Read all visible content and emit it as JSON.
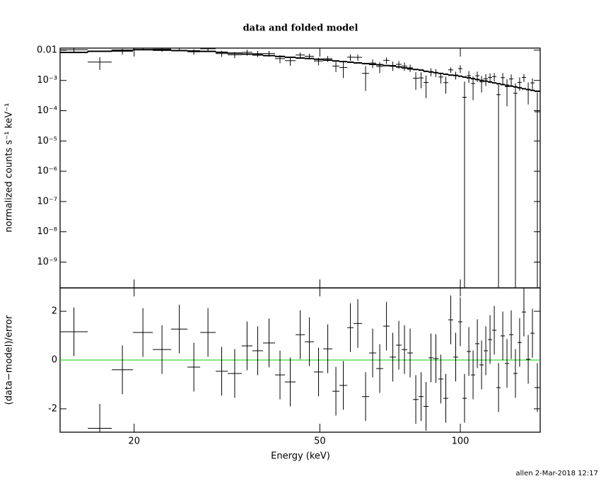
{
  "footer": "allen   2-Mar-2018 12:17",
  "chart_data": [
    {
      "type": "spectrum",
      "title": "data and folded model",
      "ylabel": "normalized counts s⁻¹ keV⁻¹",
      "ylog": true,
      "xlog": true,
      "xlim": [
        13.88,
        148.3
      ],
      "xticks": [
        20,
        50,
        100
      ],
      "ylim": [
        1.4e-10,
        0.0117
      ],
      "yticks": [
        0.01,
        {
          "value": 0.001,
          "label": "10⁻³"
        },
        {
          "value": 0.0001,
          "label": "10⁻⁴"
        },
        {
          "value": 1e-05,
          "label": "10⁻⁵"
        },
        {
          "value": 1e-06,
          "label": "10⁻⁶"
        },
        {
          "value": 1e-07,
          "label": "10⁻⁷"
        },
        {
          "value": 1e-08,
          "label": "10⁻⁸"
        },
        {
          "value": 1e-09,
          "label": "10⁻⁹"
        }
      ],
      "bin_edges": [
        13.88,
        15.91,
        17.91,
        19.89,
        21.93,
        24.01,
        26.02,
        27.71,
        29.91,
        31.73,
        34.01,
        35.84,
        37.77,
        40.09,
        42.09,
        44.36,
        46.42,
        48.57,
        50.83,
        53.19,
        55.07,
        57.23,
        59.04,
        61.58,
        63.76,
        66.03,
        68.38,
        70.56,
        72.8,
        74.86,
        76.98,
        79.16,
        81.4,
        83.41,
        85.47,
        87.57,
        89.74,
        91.96,
        94.24,
        96.56,
        98.96,
        101.0,
        103.2,
        105.4,
        107.6,
        109.9,
        112.2,
        114.6,
        117.0,
        119.5,
        122.0,
        124.6,
        127.2,
        129.9,
        132.6,
        135.4,
        138.3,
        141.3,
        144.2,
        148.3
      ],
      "values": [
        0.0103,
        0.00405,
        0.00911,
        0.01275,
        0.01086,
        0.01216,
        0.00885,
        0.01116,
        0.00772,
        0.00703,
        0.00847,
        0.00767,
        0.00776,
        0.00525,
        0.0045,
        0.00693,
        0.00629,
        0.00439,
        0.00524,
        0.00299,
        0.00267,
        0.00586,
        0.0058,
        0.00171,
        0.00375,
        0.0029,
        0.00461,
        0.00313,
        0.0034,
        0.00299,
        0.00261,
        0.00118,
        0.00121,
        0.00086,
        0.00195,
        0.00183,
        0.0013,
        0.000846,
        0.00224,
        0.00151,
        0.00246,
        0.000277,
        0.00143,
        0.000792,
        0.00143,
        0.0009,
        0.00113,
        0.00126,
        0.00134,
        0.000339,
        0.00124,
        0.000622,
        0.00112,
        0.000375,
        0.000857,
        0.00126,
        0.000511,
        0.000832,
        9.2e-05
      ],
      "errors": [
        0.00168,
        0.00184,
        0.00198,
        0.00208,
        0.002,
        0.00194,
        0.00188,
        0.00182,
        0.0017,
        0.00158,
        0.00185,
        0.00175,
        0.00165,
        0.00155,
        0.00145,
        0.001375,
        0.001325,
        0.00125,
        0.001175,
        0.0011,
        0.00147,
        0.0014,
        0.00133,
        0.00126,
        0.00119,
        0.001155,
        0.001085,
        0.00105,
        0.00098,
        0.00091,
        0.00072,
        0.00069,
        0.00066,
        0.0006,
        0.00057,
        0.00054,
        0.00051,
        0.00048,
        0.00045,
        0.00044,
        0.00069,
        0.000645,
        0.00061,
        0.00057,
        0.000535,
        0.0005,
        0.000475,
        0.000445,
        0.000415,
        0.00039,
        0.000511,
        0.000483,
        0.000455,
        0.000427,
        0.000399,
        0.000371,
        0.00035,
        0.000329,
        0.000308
      ],
      "model": {
        "color": "#000000",
        "values": [
          0.0084,
          0.0092,
          0.0099,
          0.0104,
          0.01,
          0.0097,
          0.0094,
          0.0091,
          0.0085,
          0.0079,
          0.0074,
          0.007,
          0.0066,
          0.0062,
          0.0058,
          0.0055,
          0.0053,
          0.005,
          0.0047,
          0.0044,
          0.0042,
          0.004,
          0.0038,
          0.0036,
          0.0034,
          0.0033,
          0.0031,
          0.003,
          0.0028,
          0.0026,
          0.0024,
          0.0023,
          0.0022,
          0.002,
          0.0019,
          0.0018,
          0.0017,
          0.0016,
          0.0015,
          0.00146,
          0.00138,
          0.00129,
          0.00122,
          0.00114,
          0.00107,
          0.001,
          0.00095,
          0.00089,
          0.00083,
          0.00078,
          0.00073,
          0.00069,
          0.00065,
          0.00061,
          0.00057,
          0.00053,
          0.0005,
          0.00047,
          0.00044
        ]
      },
      "color": "#000000"
    },
    {
      "type": "residuals",
      "xlabel": "Energy (keV)",
      "ylabel": "(data−model)/error",
      "xlog": true,
      "xlim": [
        13.88,
        148.3
      ],
      "xticks": [
        20,
        50,
        100
      ],
      "ylim": [
        -2.96,
        2.96
      ],
      "yticks": [
        -2,
        0,
        2
      ],
      "zero_line_color": "#00cc00",
      "color": "#000000",
      "bin_edges": [
        13.88,
        15.91,
        17.91,
        19.89,
        21.93,
        24.01,
        26.02,
        27.71,
        29.91,
        31.73,
        34.01,
        35.84,
        37.77,
        40.09,
        42.09,
        44.36,
        46.42,
        48.57,
        50.83,
        53.19,
        55.07,
        57.23,
        59.04,
        61.58,
        63.76,
        66.03,
        68.38,
        70.56,
        72.8,
        74.86,
        76.98,
        79.16,
        81.4,
        83.41,
        85.47,
        87.57,
        89.74,
        91.96,
        94.24,
        96.56,
        98.96,
        101.0,
        103.2,
        105.4,
        107.6,
        109.9,
        112.2,
        114.6,
        117.0,
        119.5,
        122.0,
        124.6,
        127.2,
        129.9,
        132.6,
        135.4,
        138.3,
        141.3,
        144.2,
        148.3
      ],
      "values": [
        1.16,
        -2.8,
        -0.4,
        1.13,
        0.43,
        1.27,
        -0.29,
        1.13,
        -0.46,
        -0.55,
        0.58,
        0.38,
        0.7,
        -0.61,
        -0.9,
        1.04,
        0.75,
        -0.49,
        0.46,
        -1.28,
        -1.04,
        1.33,
        1.5,
        -1.5,
        0.29,
        -0.35,
        1.39,
        0.12,
        0.61,
        0.43,
        0.29,
        -1.62,
        -1.5,
        -1.9,
        0.09,
        0.06,
        -0.78,
        -1.57,
        1.65,
        0.12,
        1.57,
        -1.57,
        0.35,
        -0.61,
        0.67,
        -0.2,
        0.38,
        0.84,
        1.22,
        -1.13,
        0.99,
        -0.14,
        1.04,
        -0.55,
        0.72,
        1.97,
        0.03,
        1.1,
        -1.13
      ],
      "errors": [
        1,
        1,
        1,
        1,
        1,
        1,
        1,
        1,
        1,
        1,
        1,
        1,
        1,
        1,
        1,
        1,
        1,
        1,
        1,
        1,
        1,
        1,
        1,
        1,
        1,
        1,
        1,
        1,
        1,
        1,
        1,
        1,
        1,
        1,
        1,
        1,
        1,
        1,
        1,
        1,
        1,
        1,
        1,
        1,
        1,
        1,
        1,
        1,
        1,
        1,
        1,
        1,
        1,
        1,
        1,
        1,
        1,
        1,
        1
      ]
    }
  ]
}
